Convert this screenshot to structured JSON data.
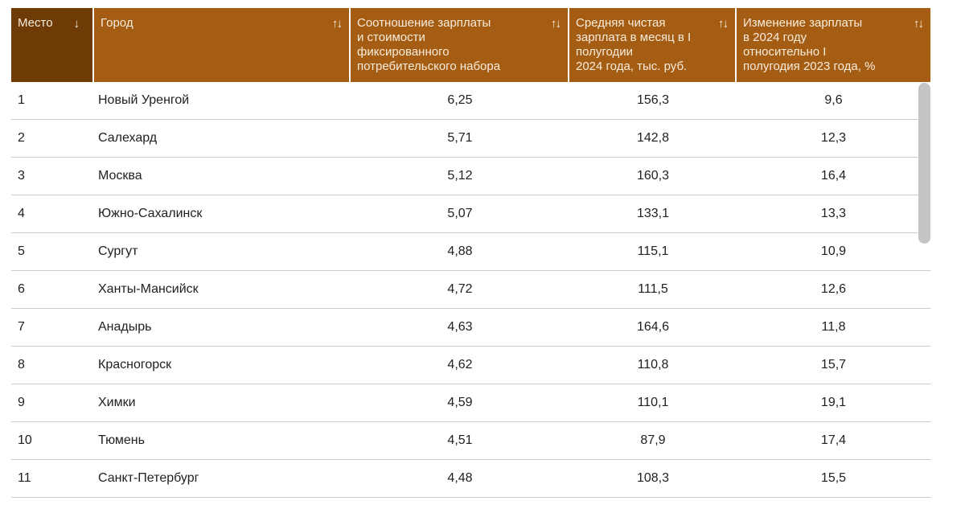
{
  "table": {
    "columns": [
      {
        "id": "place",
        "label": "Место",
        "sort_icon": "↓",
        "sorted": true,
        "align": "left"
      },
      {
        "id": "city",
        "label": "Город",
        "sort_icon": "↑↓",
        "sorted": false,
        "align": "left"
      },
      {
        "id": "ratio",
        "label": "Соотношение зарплаты\nи стоимости\nфиксированного\nпотребительского набора",
        "sort_icon": "↑↓",
        "sorted": false,
        "align": "center"
      },
      {
        "id": "salary",
        "label": "Средняя чистая\nзарплата в месяц в I\nполугодии\n2024 года, тыс. руб.",
        "sort_icon": "↑↓",
        "sorted": false,
        "align": "center"
      },
      {
        "id": "change",
        "label": "Изменение зарплаты\nв 2024 году\nотносительно I\nполугодия 2023 года, %",
        "sort_icon": "↑↓",
        "sorted": false,
        "align": "center"
      }
    ],
    "rows": [
      {
        "place": "1",
        "city": "Новый Уренгой",
        "ratio": "6,25",
        "salary": "156,3",
        "change": "9,6"
      },
      {
        "place": "2",
        "city": "Салехард",
        "ratio": "5,71",
        "salary": "142,8",
        "change": "12,3"
      },
      {
        "place": "3",
        "city": "Москва",
        "ratio": "5,12",
        "salary": "160,3",
        "change": "16,4"
      },
      {
        "place": "4",
        "city": "Южно-Сахалинск",
        "ratio": "5,07",
        "salary": "133,1",
        "change": "13,3"
      },
      {
        "place": "5",
        "city": "Сургут",
        "ratio": "4,88",
        "salary": "115,1",
        "change": "10,9"
      },
      {
        "place": "6",
        "city": "Ханты-Мансийск",
        "ratio": "4,72",
        "salary": "111,5",
        "change": "12,6"
      },
      {
        "place": "7",
        "city": "Анадырь",
        "ratio": "4,63",
        "salary": "164,6",
        "change": "11,8"
      },
      {
        "place": "8",
        "city": "Красногорск",
        "ratio": "4,62",
        "salary": "110,8",
        "change": "15,7"
      },
      {
        "place": "9",
        "city": "Химки",
        "ratio": "4,59",
        "salary": "110,1",
        "change": "19,1"
      },
      {
        "place": "10",
        "city": "Тюмень",
        "ratio": "4,51",
        "salary": "87,9",
        "change": "17,4"
      },
      {
        "place": "11",
        "city": "Санкт-Петербург",
        "ratio": "4,48",
        "salary": "108,3",
        "change": "15,5"
      }
    ]
  },
  "colors": {
    "header_bg": "#a45d12",
    "header_sorted_bg": "#6e3a06",
    "header_text": "#f8ecdd",
    "cell_text": "#212121",
    "row_border": "#cccccc",
    "scrollbar_thumb": "#c3c5c7",
    "page_bg": "#ffffff"
  }
}
